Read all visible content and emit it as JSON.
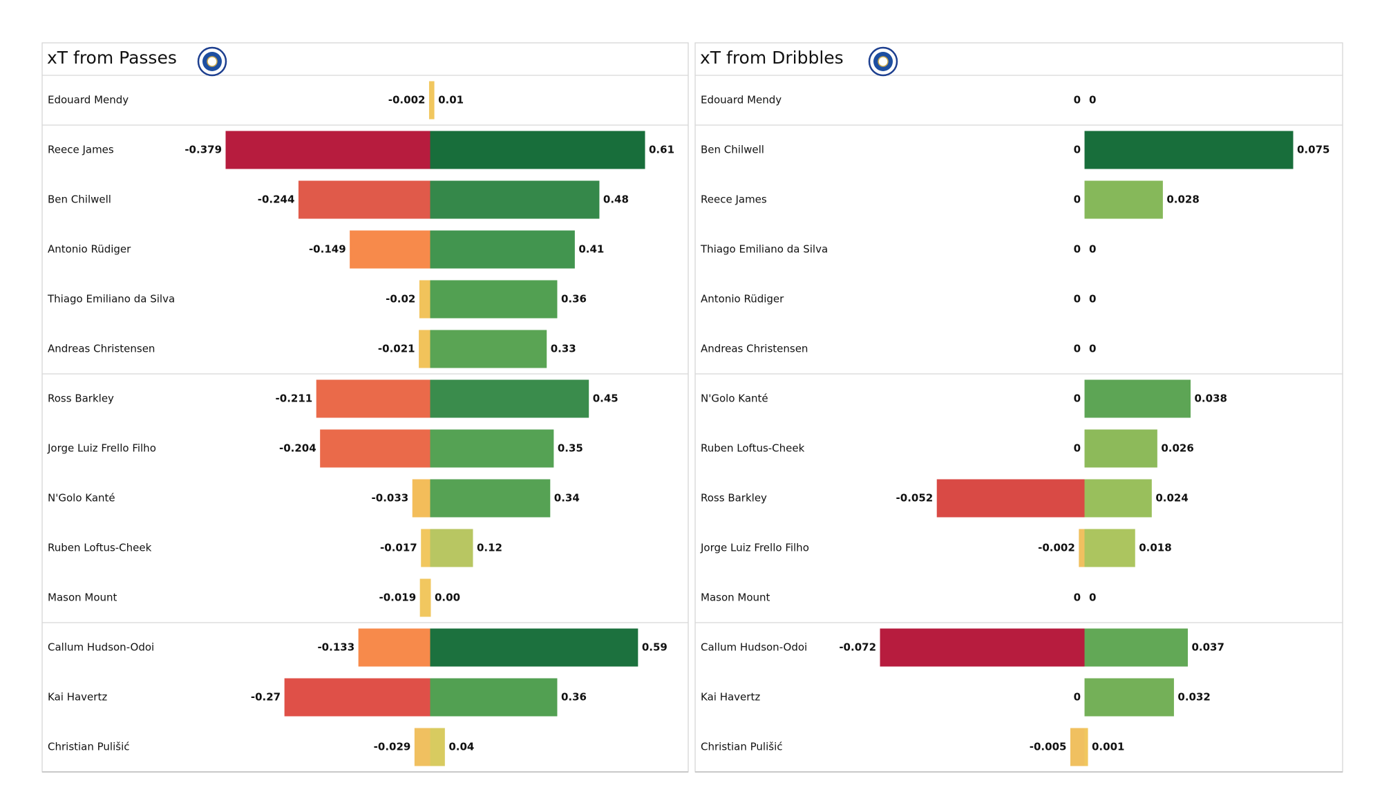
{
  "chart_data": [
    {
      "type": "bar",
      "title": "xT from Passes",
      "categories": [
        "Edouard Mendy",
        "Reece James",
        "Ben Chilwell",
        "Antonio Rüdiger",
        "Thiago Emiliano da Silva",
        "Andreas Christensen",
        "Ross Barkley",
        "Jorge Luiz Frello Filho",
        "N'Golo Kanté",
        "Ruben Loftus-Cheek",
        "Mason Mount",
        "Callum Hudson-Odoi",
        "Kai Havertz",
        "Christian Pulišić"
      ],
      "xlim": [
        -0.379,
        0.61
      ],
      "series": [
        {
          "values": [
            -0.002,
            -0.379,
            -0.244,
            -0.149,
            -0.02,
            -0.021,
            -0.211,
            -0.204,
            -0.033,
            -0.017,
            -0.019,
            -0.133,
            -0.27,
            -0.029
          ],
          "colors": [
            "#f1c75f",
            "#b71c3e",
            "#e05a4a",
            "#f78a4b",
            "#f1c35b",
            "#f1c35b",
            "#ea6a4a",
            "#ea6a4a",
            "#f3bd5a",
            "#f1c75f",
            "#f1c75f",
            "#f78a4b",
            "#df5048",
            "#f0c060"
          ]
        },
        {
          "values": [
            0.01,
            0.61,
            0.48,
            0.41,
            0.36,
            0.33,
            0.45,
            0.35,
            0.34,
            0.12,
            0,
            0.59,
            0.36,
            0.04
          ],
          "value_labels": [
            "0.01",
            "0.61",
            "0.48",
            "0.41",
            "0.36",
            "0.33",
            "0.45",
            "0.35",
            "0.34",
            "0.12",
            "0.00",
            "0.59",
            "0.36",
            "0.04"
          ],
          "colors": [
            "#f1c75f",
            "#186e3b",
            "#35884a",
            "#42954f",
            "#52a052",
            "#5aa454",
            "#3a8c4c",
            "#55a254",
            "#56a254",
            "#b8c662",
            "#f1c75f",
            "#1c713e",
            "#52a052",
            "#d8cb60"
          ]
        }
      ]
    },
    {
      "type": "bar",
      "title": "xT from Dribbles",
      "categories": [
        "Edouard Mendy",
        "Ben Chilwell",
        "Reece James",
        "Thiago Emiliano da Silva",
        "Antonio Rüdiger",
        "Andreas Christensen",
        "N'Golo Kanté",
        "Ruben Loftus-Cheek",
        "Ross Barkley",
        "Jorge Luiz Frello Filho",
        "Mason Mount",
        "Callum Hudson-Odoi",
        "Kai Havertz",
        "Christian Pulišić"
      ],
      "xlim": [
        -0.072,
        0.075
      ],
      "series": [
        {
          "values": [
            0,
            0,
            0,
            0,
            0,
            0,
            0,
            0,
            -0.052,
            -0.002,
            0,
            -0.072,
            0,
            -0.005
          ],
          "colors": [
            "#f1c75f",
            "#f1c75f",
            "#f1c75f",
            "#f1c75f",
            "#f1c75f",
            "#f1c75f",
            "#f1c75f",
            "#f1c75f",
            "#d94a45",
            "#f0c060",
            "#f1c75f",
            "#b71c3e",
            "#f1c75f",
            "#f0c060"
          ]
        },
        {
          "values": [
            0,
            0.075,
            0.028,
            0,
            0,
            0,
            0.038,
            0.026,
            0.024,
            0.018,
            0,
            0.037,
            0.032,
            0.001
          ],
          "colors": [
            "#f1c75f",
            "#186e3b",
            "#86b85a",
            "#f1c75f",
            "#f1c75f",
            "#f1c75f",
            "#5da555",
            "#8dba5a",
            "#99bf5c",
            "#acc55f",
            "#f1c75f",
            "#62a856",
            "#74b058",
            "#f0c75e"
          ]
        }
      ]
    }
  ]
}
